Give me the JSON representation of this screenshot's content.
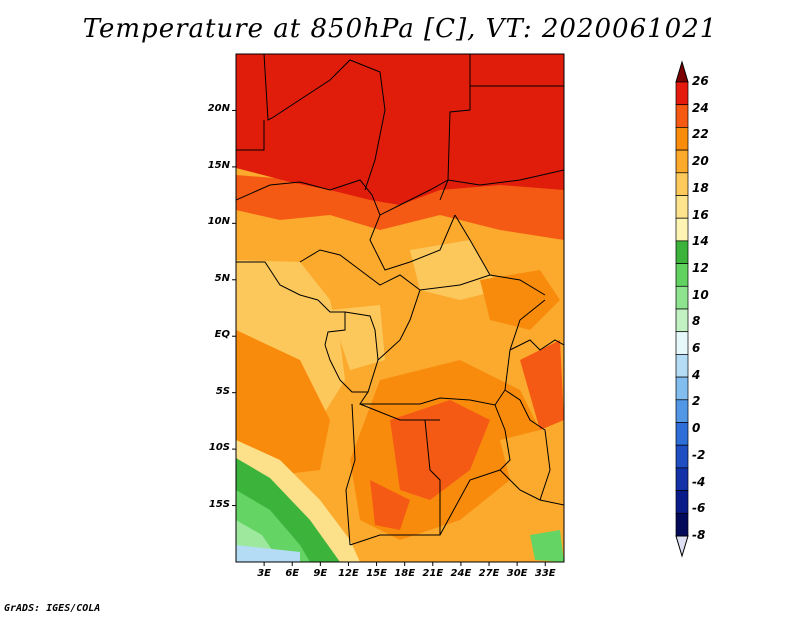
{
  "title": "Temperature at 850hPa [C], VT: 2020061021",
  "credit": "GrADS: IGES/COLA",
  "lat_labels": [
    "20N",
    "15N",
    "10N",
    "5N",
    "EQ",
    "5S",
    "10S",
    "15S"
  ],
  "lon_labels": [
    "3E",
    "6E",
    "9E",
    "12E",
    "15E",
    "18E",
    "21E",
    "24E",
    "27E",
    "30E",
    "33E"
  ],
  "colorbar": {
    "labels": [
      "26",
      "24",
      "22",
      "20",
      "18",
      "16",
      "14",
      "12",
      "10",
      "8",
      "6",
      "4",
      "2",
      "0",
      "-2",
      "-4",
      "-6",
      "-8"
    ],
    "colors": [
      "#7d0000",
      "#e31a0c",
      "#f65a12",
      "#f98c0a",
      "#fbaa2c",
      "#fcc95a",
      "#fde38c",
      "#fef5b4",
      "#3cb43c",
      "#5fd25f",
      "#8ee48e",
      "#c2f2c2",
      "#e6f8fa",
      "#b4dcf5",
      "#82bdf0",
      "#5296e6",
      "#2d6ed8",
      "#1e4ec2",
      "#1432a8",
      "#0a1c8a",
      "#040a5a",
      "#e0e0f5"
    ]
  },
  "map": {
    "region": {
      "lon_min": 0,
      "lon_max": 35,
      "lat_min": -20,
      "lat_max": 25
    },
    "fill_colors": {
      "t24plus": "#e01d0b",
      "t22": "#f55a14",
      "t20": "#f98b0c",
      "t18": "#fbaa2e",
      "t16": "#fcc85c",
      "t14": "#fde08a",
      "t12": "#3cb43c",
      "t10": "#64d464",
      "t8": "#9ee89e",
      "t6": "#d8f5e2",
      "t4": "#b4dcf5",
      "border": "#000000"
    }
  }
}
